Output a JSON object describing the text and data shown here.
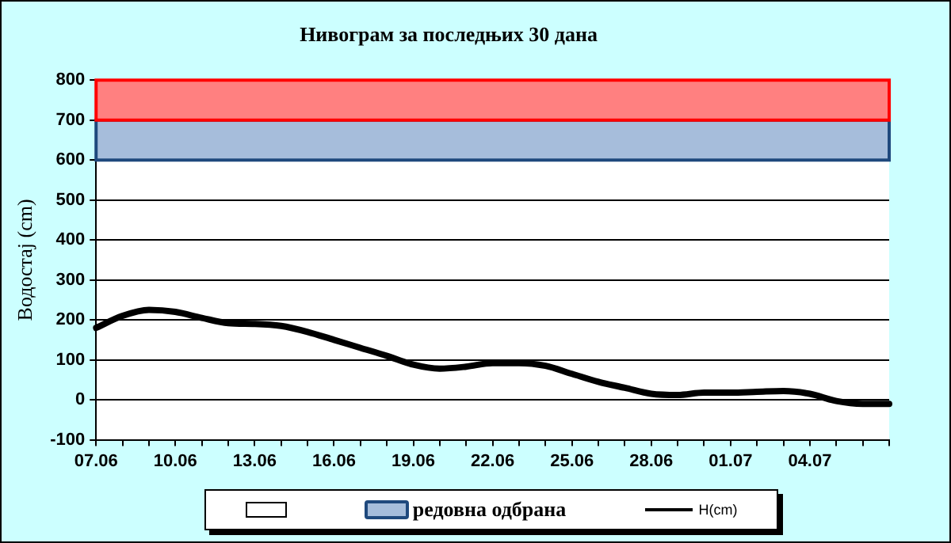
{
  "chart_data": {
    "type": "line",
    "title": "Нивограм за последњих 30 дана",
    "ylabel": "Водостај (cm)",
    "categories": [
      "07.06",
      null,
      null,
      "10.06",
      null,
      null,
      "13.06",
      null,
      null,
      "16.06",
      null,
      null,
      "19.06",
      null,
      null,
      "22.06",
      null,
      null,
      "25.06",
      null,
      null,
      "28.06",
      null,
      null,
      "01.07",
      null,
      null,
      "04.07",
      null,
      null,
      null
    ],
    "series": [
      {
        "name": "H(cm)",
        "color": "#000000",
        "values": [
          180,
          210,
          225,
          220,
          205,
          192,
          190,
          185,
          170,
          150,
          130,
          110,
          88,
          78,
          83,
          92,
          92,
          85,
          65,
          45,
          30,
          15,
          12,
          18,
          18,
          20,
          22,
          15,
          -3,
          -10,
          -10
        ]
      }
    ],
    "ylim": [
      -100,
      800
    ],
    "yticks": [
      -100,
      0,
      100,
      200,
      300,
      400,
      500,
      600,
      700,
      800
    ],
    "bands": [
      {
        "axis": "y",
        "from": 600,
        "to": 700,
        "label": "редовна одбрана",
        "color": "#a6bddb"
      },
      {
        "axis": "y",
        "from": 700,
        "to": 800,
        "color": "#ff8080"
      }
    ],
    "grid": "y",
    "legend": "bottom",
    "marker": "none",
    "line_style": "solid"
  }
}
